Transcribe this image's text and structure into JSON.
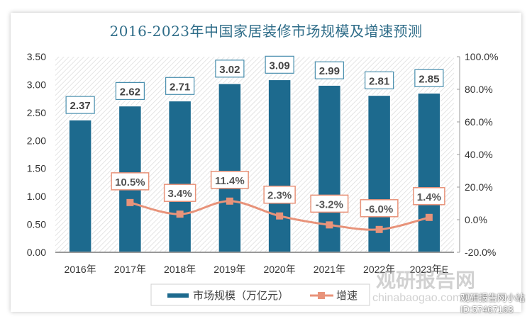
{
  "chart_data": {
    "type": "bar+line",
    "title": "2016-2023年中国家居装修市场规模及增速预测",
    "categories": [
      "2016年",
      "2017年",
      "2018年",
      "2019年",
      "2020年",
      "2021年",
      "2022年",
      "2023年E"
    ],
    "series": [
      {
        "name": "市场规模（万亿元）",
        "type": "bar",
        "axis": "left",
        "color": "#1d6a8e",
        "values": [
          2.37,
          2.62,
          2.71,
          3.02,
          3.09,
          2.99,
          2.81,
          2.85
        ],
        "labels": [
          "2.37",
          "2.62",
          "2.71",
          "3.02",
          "3.09",
          "2.99",
          "2.81",
          "2.85"
        ]
      },
      {
        "name": "增速",
        "type": "line",
        "axis": "right",
        "color": "#e8937a",
        "values": [
          null,
          10.5,
          3.4,
          11.4,
          2.3,
          -3.2,
          -6.0,
          1.4
        ],
        "labels": [
          null,
          "10.5%",
          "3.4%",
          "11.4%",
          "2.3%",
          "-3.2%",
          "-6.0%",
          "1.4%"
        ]
      }
    ],
    "y_left": {
      "range": [
        0,
        3.5
      ],
      "ticks": [
        "0.00",
        "0.50",
        "1.00",
        "1.50",
        "2.00",
        "2.50",
        "3.00",
        "3.50"
      ]
    },
    "y_right": {
      "range": [
        -20,
        100
      ],
      "ticks": [
        "-20.0%",
        "0.0%",
        "20.0%",
        "40.0%",
        "60.0%",
        "80.0%",
        "100.0%"
      ]
    },
    "grid": false,
    "legend": "bottom"
  },
  "watermark": {
    "logo": "观研报告网",
    "site": "chinabaogao.com",
    "account": "观研报告网小站",
    "id": "ID:57467163"
  }
}
